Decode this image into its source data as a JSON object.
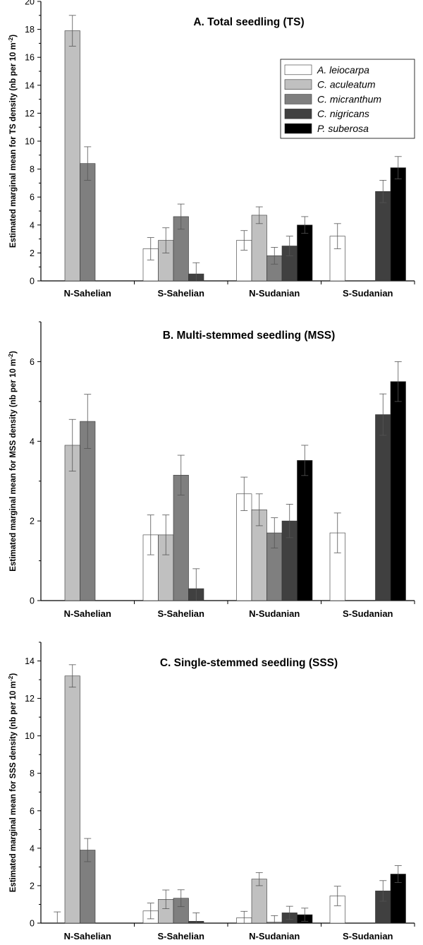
{
  "chart_data": [
    {
      "type": "bar",
      "title": "A. Total seedling (TS)",
      "ylabel_prefix": "Estimated marginal mean for TS density (nb per 10 m",
      "ylabel_exp": "-2",
      "ylabel_suffix": ")",
      "categories": [
        "N-Sahelian",
        "S-Sahelian",
        "N-Sudanian",
        "S-Sudanian"
      ],
      "ylim": [
        0,
        20
      ],
      "yticks": [
        0,
        2,
        4,
        6,
        8,
        10,
        12,
        14,
        16,
        18,
        20
      ],
      "series": [
        {
          "name": "A. leiocarpa",
          "color": "#ffffff",
          "values": [
            null,
            2.3,
            2.9,
            3.2
          ],
          "errors": [
            null,
            0.8,
            0.7,
            0.9
          ]
        },
        {
          "name": "C. aculeatum",
          "color": "#c0c0c0",
          "values": [
            17.9,
            2.9,
            4.7,
            null
          ],
          "errors": [
            1.1,
            0.9,
            0.6,
            null
          ]
        },
        {
          "name": "C. micranthum",
          "color": "#7f7f7f",
          "values": [
            8.4,
            4.6,
            1.8,
            null
          ],
          "errors": [
            1.2,
            0.9,
            0.6,
            null
          ]
        },
        {
          "name": "C. nigricans",
          "color": "#404040",
          "values": [
            null,
            0.5,
            2.5,
            6.4
          ],
          "errors": [
            null,
            0.8,
            0.7,
            0.8
          ]
        },
        {
          "name": "P. suberosa",
          "color": "#000000",
          "values": [
            null,
            null,
            4.0,
            8.1
          ],
          "errors": [
            null,
            null,
            0.6,
            0.8
          ]
        }
      ],
      "legend": {
        "show": true,
        "position": "top-right"
      }
    },
    {
      "type": "bar",
      "title": "B. Multi-stemmed seedling (MSS)",
      "ylabel_prefix": "Estimated marginal mean for MSS density (nb per 10 m",
      "ylabel_exp": "-2",
      "ylabel_suffix": ")",
      "categories": [
        "N-Sahelian",
        "S-Sahelian",
        "N-Sudanian",
        "S-Sudanian"
      ],
      "ylim": [
        0,
        7
      ],
      "yticks": [
        0,
        2,
        4,
        6
      ],
      "series": [
        {
          "name": "A. leiocarpa",
          "color": "#ffffff",
          "values": [
            null,
            1.65,
            2.68,
            1.7
          ],
          "errors": [
            null,
            0.5,
            0.42,
            0.5
          ]
        },
        {
          "name": "C. aculeatum",
          "color": "#c0c0c0",
          "values": [
            3.9,
            1.65,
            2.28,
            null
          ],
          "errors": [
            0.65,
            0.5,
            0.4,
            null
          ]
        },
        {
          "name": "C. micranthum",
          "color": "#7f7f7f",
          "values": [
            4.5,
            3.15,
            1.7,
            null
          ],
          "errors": [
            0.68,
            0.5,
            0.38,
            null
          ]
        },
        {
          "name": "C. nigricans",
          "color": "#404040",
          "values": [
            null,
            0.3,
            2.0,
            4.67
          ],
          "errors": [
            null,
            0.5,
            0.42,
            0.52
          ]
        },
        {
          "name": "P. suberosa",
          "color": "#000000",
          "values": [
            null,
            null,
            3.52,
            5.5
          ],
          "errors": [
            null,
            null,
            0.38,
            0.5
          ]
        }
      ],
      "legend": {
        "show": false
      }
    },
    {
      "type": "bar",
      "title": "C. Single-stemmed seedling (SSS)",
      "ylabel_prefix": "Estimated marginal mean for SSS density (nb per 10 m",
      "ylabel_exp": "-2",
      "ylabel_suffix": ")",
      "categories": [
        "N-Sahelian",
        "S-Sahelian",
        "N-Sudanian",
        "S-Sudanian"
      ],
      "ylim": [
        0,
        15
      ],
      "yticks": [
        0,
        2,
        4,
        6,
        8,
        10,
        12,
        14
      ],
      "series": [
        {
          "name": "A. leiocarpa",
          "color": "#ffffff",
          "values": [
            0.0,
            0.65,
            0.28,
            1.45
          ],
          "errors": [
            0.6,
            0.42,
            0.35,
            0.52
          ]
        },
        {
          "name": "C. aculeatum",
          "color": "#c0c0c0",
          "values": [
            13.2,
            1.27,
            2.35,
            null
          ],
          "errors": [
            0.6,
            0.5,
            0.35,
            null
          ]
        },
        {
          "name": "C. micranthum",
          "color": "#7f7f7f",
          "values": [
            3.9,
            1.33,
            0.05,
            null
          ],
          "errors": [
            0.62,
            0.45,
            0.35,
            null
          ]
        },
        {
          "name": "C. nigricans",
          "color": "#404040",
          "values": [
            null,
            0.1,
            0.55,
            1.72
          ],
          "errors": [
            null,
            0.45,
            0.35,
            0.55
          ]
        },
        {
          "name": "P. suberosa",
          "color": "#000000",
          "values": [
            null,
            null,
            0.45,
            2.62
          ],
          "errors": [
            null,
            null,
            0.35,
            0.45
          ]
        }
      ],
      "legend": {
        "show": false
      }
    }
  ]
}
